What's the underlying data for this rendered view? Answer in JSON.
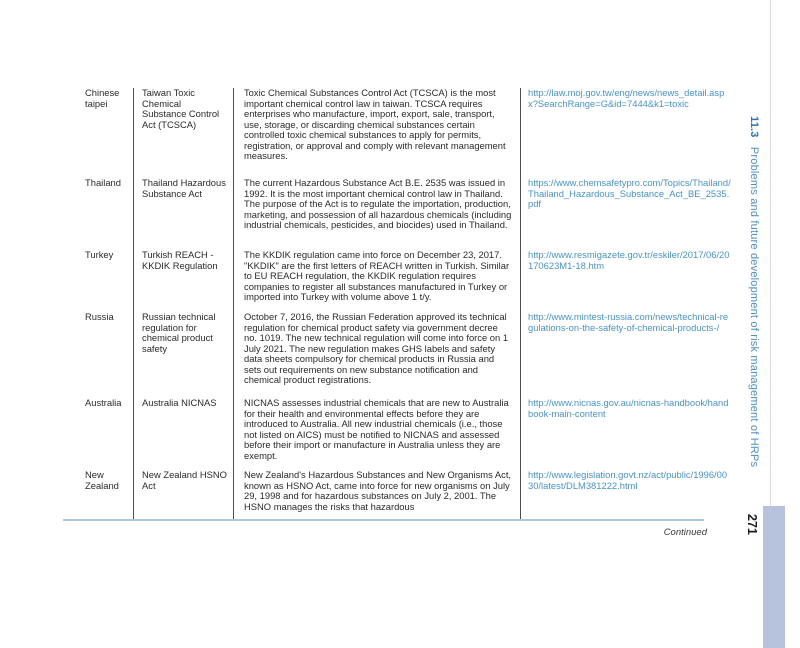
{
  "sidebar": {
    "section_number": "11.3",
    "section_title": "Problems and future development of risk management of HRPs",
    "page_number": "271",
    "accent_color": "#4a8fc4",
    "bar_color": "#b7c2dc"
  },
  "table": {
    "continued_label": "Continued",
    "link_color": "#4893c8",
    "rule_color": "#a9c7e2",
    "rows": [
      {
        "country": "Chinese taipei",
        "regulation": "Taiwan Toxic Chemical Substance Control Act (TCSCA)",
        "description": "Toxic Chemical Substances Control Act (TCSCA) is the most important chemical control law in taiwan. TCSCA requires enterprises who manufacture, import, export, sale, transport, use, storage, or discarding chemical substances certain controlled toxic chemical substances to apply for permits, registration, or approval and comply with relevant management measures.",
        "url": "http://law.moj.gov.tw/eng/news/news_detail.aspx?SearchRange=G&id=7444&k1=toxic"
      },
      {
        "country": "Thailand",
        "regulation": "Thailand Hazardous Substance Act",
        "description": "The current Hazardous Substance Act B.E. 2535 was issued in 1992. It is the most important chemical control law in Thailand. The purpose of the Act is to regulate the importation, production, marketing, and possession of all hazardous chemicals (including industrial chemicals, pesticides, and biocides) used in Thailand.",
        "url": "https://www.chemsafetypro.com/Topics/Thailand/Thailand_Hazardous_Substance_Act_BE_2535.pdf"
      },
      {
        "country": "Turkey",
        "regulation": "Turkish REACH - KKDIK Regulation",
        "description": "The KKDIK regulation came into force on December 23, 2017. \"KKDIK\" are the first letters of REACH written in Turkish. Similar to EU REACH regulation, the KKDIK regulation requires companies to register all substances manufactured in Turkey or imported into Turkey with volume above 1 t/y.",
        "url": "http://www.resmigazete.gov.tr/eskiler/2017/06/20170623M1-18.htm"
      },
      {
        "country": "Russia",
        "regulation": "Russian technical regulation for chemical product safety",
        "description": "October 7, 2016, the Russian Federation approved its technical regulation for chemical product safety via government decree no. 1019. The new technical regulation will come into force on 1 July 2021. The new regulation makes GHS labels and safety data sheets compulsory for chemical products in Russia and sets out requirements on new substance notification and chemical product registrations.",
        "url": "http://www.mintest-russia.com/news/technical-regulations-on-the-safety-of-chemical-products-/"
      },
      {
        "country": "Australia",
        "regulation": "Australia NICNAS",
        "description": "NICNAS assesses industrial chemicals that are new to Australia for their health and environmental effects before they are introduced to Australia. All new industrial chemicals (i.e., those not listed on AICS) must be notified to NICNAS and assessed before their import or manufacture in Australia unless they are exempt.",
        "url": "http://www.nicnas.gov.au/nicnas-handbook/handbook-main-content"
      },
      {
        "country": "New Zealand",
        "regulation": "New Zealand HSNO Act",
        "description": "New Zealand's Hazardous Substances and New Organisms Act, known as HSNO Act, came into force for new organisms on July 29, 1998 and for hazardous substances on July 2, 2001. The HSNO manages the risks that hazardous",
        "url": "http://www.legislation.govt.nz/act/public/1996/0030/latest/DLM381222.html"
      }
    ]
  }
}
